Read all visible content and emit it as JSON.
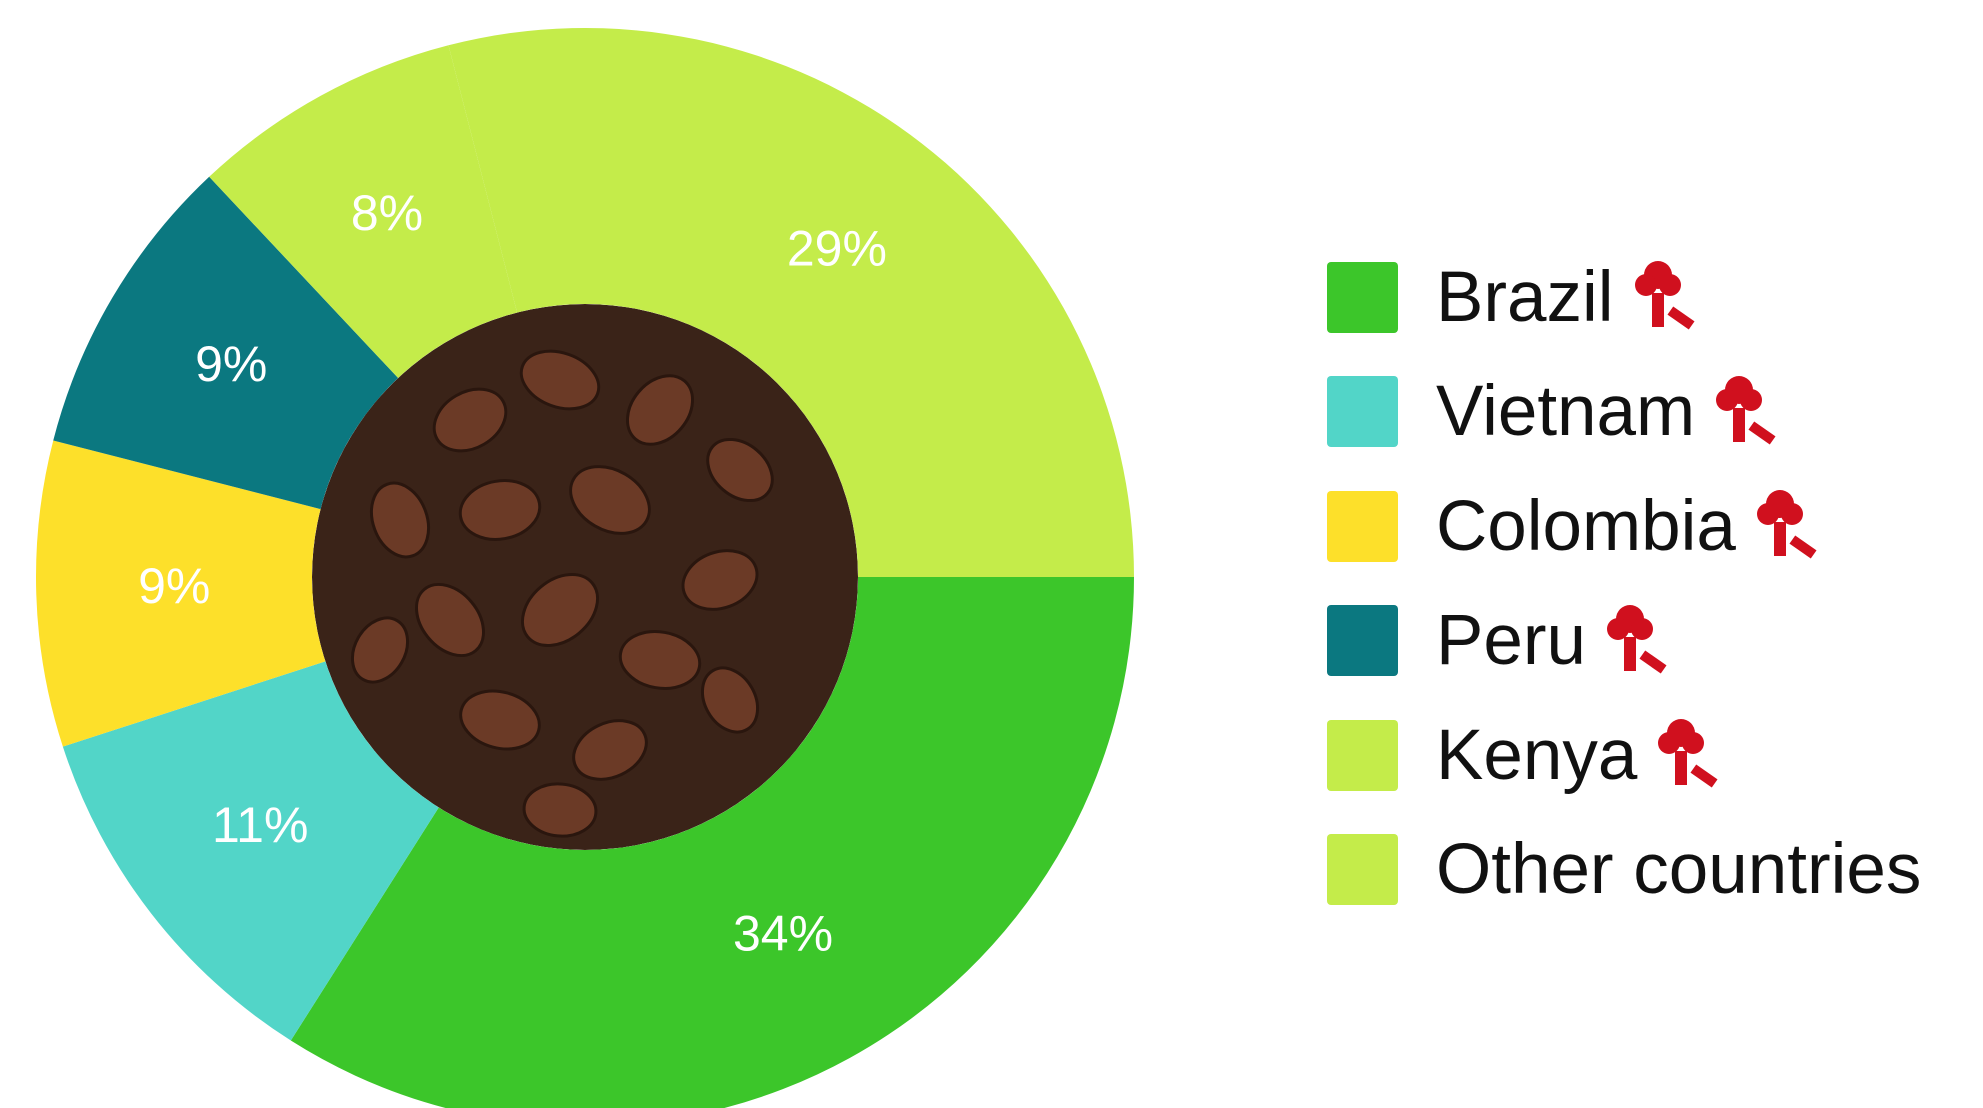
{
  "chart_data": {
    "type": "donut",
    "categories": [
      "Brazil",
      "Vietnam",
      "Colombia",
      "Peru",
      "Kenya",
      "Other countries"
    ],
    "values": [
      34,
      11,
      9,
      9,
      8,
      29
    ],
    "value_labels": [
      "34%",
      "11%",
      "9%",
      "9%",
      "8%",
      "29%"
    ],
    "colors": [
      "#3cc62a",
      "#52d5c8",
      "#fde02a",
      "#0b7880",
      "#c4ec4a",
      "#c4ec4a"
    ]
  }
}
